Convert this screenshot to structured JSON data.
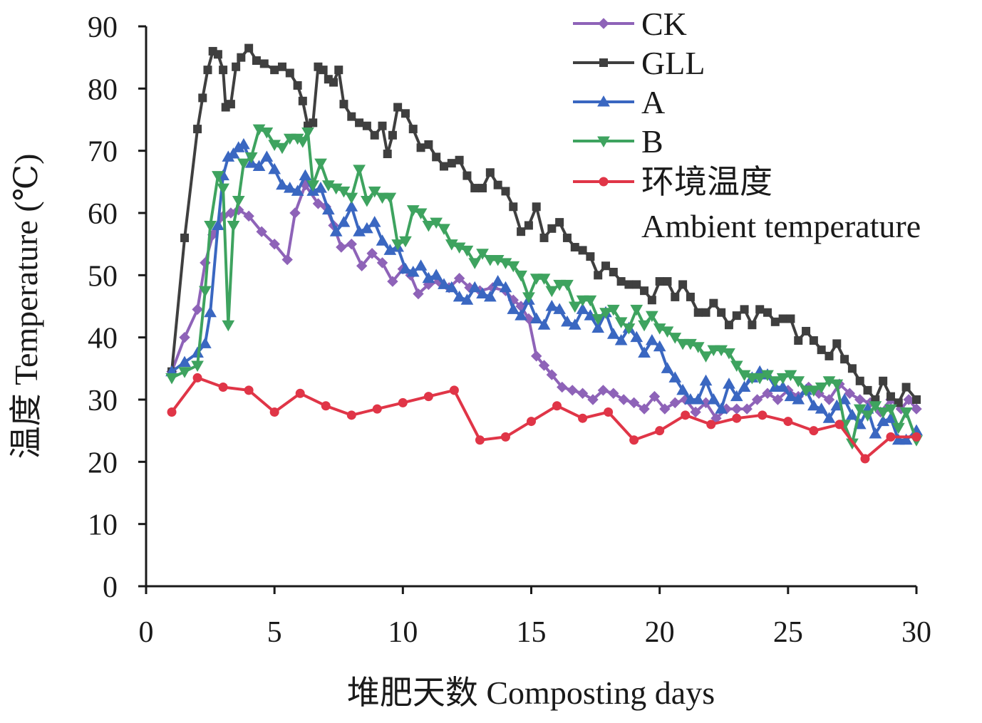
{
  "chart_data": {
    "type": "line",
    "title": "",
    "xlabel": "堆肥天数 Composting days",
    "ylabel": "温度 Temperature (℃)",
    "xlim": [
      0,
      30
    ],
    "ylim": [
      0,
      90
    ],
    "xticks": [
      0,
      5,
      10,
      15,
      20,
      25,
      30
    ],
    "yticks": [
      0,
      10,
      20,
      30,
      40,
      50,
      60,
      70,
      80,
      90
    ],
    "grid": false,
    "legend_position": "top-right",
    "series": [
      {
        "name": "CK",
        "color": "#8e63b8",
        "marker": "diamond",
        "x": [
          1,
          1.5,
          2,
          2.3,
          2.6,
          3,
          3.3,
          3.6,
          4,
          4.5,
          5,
          5.5,
          5.8,
          6.2,
          6.7,
          7,
          7.3,
          7.6,
          8,
          8.4,
          8.8,
          9.2,
          9.6,
          10,
          10.3,
          10.6,
          11,
          11.4,
          11.8,
          12.2,
          12.6,
          13,
          13.5,
          14,
          14.3,
          14.6,
          14.9,
          15.2,
          15.5,
          15.8,
          16.2,
          16.6,
          17,
          17.4,
          17.8,
          18.2,
          18.6,
          19,
          19.4,
          19.8,
          20.2,
          20.6,
          21,
          21.4,
          21.8,
          22.2,
          22.6,
          23,
          23.4,
          23.8,
          24.2,
          24.6,
          25,
          25.4,
          25.8,
          26.2,
          26.6,
          27,
          27.4,
          27.8,
          28.2,
          28.6,
          29,
          29.4,
          29.7,
          30
        ],
        "values": [
          34.5,
          40,
          44.5,
          52,
          56.5,
          59.5,
          60,
          60.5,
          59.5,
          57,
          55,
          52.5,
          60,
          64.5,
          61.5,
          61,
          58,
          54.5,
          55,
          51.5,
          53.5,
          52,
          49,
          51,
          50,
          47,
          48.5,
          49,
          48,
          49.5,
          48,
          47.5,
          48,
          47.5,
          46,
          45,
          43,
          37,
          35.5,
          34,
          32,
          31.5,
          31,
          30,
          31.5,
          31,
          30,
          29.5,
          28.5,
          30.5,
          28.5,
          29.5,
          30,
          28,
          29.5,
          27,
          28.5,
          28.5,
          28.5,
          30,
          31,
          30,
          31.5,
          30.5,
          32,
          31,
          30,
          32.5,
          31,
          30,
          29.5,
          28,
          30,
          28.5,
          30,
          28.5
        ]
      },
      {
        "name": "GLL",
        "color": "#3f3f3f",
        "marker": "square",
        "x": [
          1,
          1.5,
          2,
          2.2,
          2.4,
          2.6,
          2.8,
          3,
          3.1,
          3.3,
          3.5,
          3.7,
          4,
          4.3,
          4.6,
          5,
          5.3,
          5.6,
          5.9,
          6.1,
          6.3,
          6.5,
          6.7,
          6.9,
          7.1,
          7.3,
          7.5,
          7.7,
          8,
          8.3,
          8.6,
          8.9,
          9.2,
          9.4,
          9.6,
          9.8,
          10.1,
          10.4,
          10.7,
          11,
          11.3,
          11.6,
          11.9,
          12.2,
          12.5,
          12.8,
          13.1,
          13.4,
          13.7,
          14,
          14.3,
          14.6,
          14.9,
          15.2,
          15.5,
          15.8,
          16.1,
          16.4,
          16.7,
          17,
          17.3,
          17.6,
          17.9,
          18.2,
          18.5,
          18.8,
          19.1,
          19.4,
          19.7,
          20,
          20.3,
          20.6,
          20.9,
          21.2,
          21.5,
          21.8,
          22.1,
          22.4,
          22.7,
          23,
          23.3,
          23.6,
          23.9,
          24.2,
          24.5,
          24.8,
          25.1,
          25.4,
          25.7,
          26,
          26.3,
          26.6,
          26.9,
          27.2,
          27.5,
          27.8,
          28.1,
          28.4,
          28.7,
          29,
          29.3,
          29.6,
          30
        ],
        "values": [
          34.5,
          56,
          73.5,
          78.5,
          83,
          86,
          85.5,
          83,
          77,
          77.5,
          83.5,
          85,
          86.5,
          84.5,
          84,
          83,
          83.5,
          82.5,
          80.5,
          78,
          74,
          74.5,
          83.5,
          83,
          81.5,
          81,
          83,
          77.5,
          75.5,
          74.5,
          74,
          72.5,
          74,
          69.5,
          72.5,
          77,
          76,
          73.5,
          70.5,
          71,
          69,
          67.5,
          68,
          68.5,
          66,
          64,
          64,
          66.5,
          64.5,
          63.5,
          61,
          57,
          58,
          61,
          56,
          57.5,
          58.5,
          56,
          54.5,
          54,
          53,
          50,
          51.5,
          50.5,
          49,
          48.5,
          48.5,
          47.5,
          46,
          49,
          49,
          46.5,
          48.5,
          46.5,
          44,
          44,
          45.5,
          44,
          42,
          43.5,
          44.5,
          42,
          44.5,
          44,
          42.5,
          43,
          43,
          39.5,
          41,
          39.5,
          38,
          37,
          39,
          36.5,
          35,
          33,
          31.5,
          30,
          33,
          30.5,
          29.5,
          32,
          30
        ]
      },
      {
        "name": "A",
        "color": "#3a67c1",
        "marker": "triangle-up",
        "x": [
          1,
          1.5,
          2,
          2.3,
          2.5,
          2.8,
          3,
          3.2,
          3.4,
          3.6,
          3.8,
          4.1,
          4.4,
          4.7,
          5,
          5.3,
          5.6,
          5.9,
          6.2,
          6.5,
          6.8,
          7.1,
          7.4,
          7.7,
          8,
          8.3,
          8.6,
          8.9,
          9.2,
          9.5,
          9.8,
          10.1,
          10.4,
          10.7,
          11,
          11.3,
          11.6,
          11.9,
          12.2,
          12.5,
          12.8,
          13.1,
          13.4,
          13.7,
          14,
          14.3,
          14.6,
          14.9,
          15.2,
          15.5,
          15.8,
          16.1,
          16.4,
          16.7,
          17,
          17.3,
          17.6,
          17.9,
          18.2,
          18.5,
          18.8,
          19.1,
          19.4,
          19.7,
          20,
          20.3,
          20.6,
          20.9,
          21.2,
          21.5,
          21.8,
          22.1,
          22.4,
          22.7,
          23,
          23.3,
          23.6,
          23.9,
          24.2,
          24.5,
          24.8,
          25.1,
          25.4,
          25.7,
          26,
          26.3,
          26.6,
          26.9,
          27.2,
          27.5,
          27.8,
          28.1,
          28.4,
          28.7,
          29,
          29.3,
          29.6,
          30
        ],
        "values": [
          34.5,
          36,
          37.5,
          39,
          44,
          58,
          66,
          69,
          69.5,
          70.5,
          71,
          68,
          67.5,
          69,
          67,
          64.5,
          64,
          63.5,
          66,
          63.5,
          64,
          60.5,
          57,
          58.5,
          61,
          57,
          57.5,
          58.5,
          55.5,
          54,
          54.5,
          51,
          50.5,
          51.5,
          49.5,
          50,
          48.5,
          48,
          46.5,
          46,
          48,
          47,
          46.5,
          49,
          48,
          44.5,
          43.5,
          46,
          43,
          42,
          45,
          44.5,
          42.5,
          42,
          44.5,
          43.5,
          41.5,
          44,
          40.5,
          39.5,
          41.5,
          40,
          37.5,
          39.5,
          38.5,
          35,
          33.5,
          31.5,
          30,
          30,
          33,
          30,
          28.5,
          32.5,
          30.5,
          32,
          33.5,
          34.5,
          34,
          32,
          32,
          30.5,
          30,
          31.5,
          29,
          28.5,
          27,
          29,
          30,
          27.5,
          26,
          28.5,
          24.5,
          26.5,
          27,
          23.5,
          23.5,
          25
        ]
      },
      {
        "name": "B",
        "color": "#3ea35f",
        "marker": "triangle-down",
        "x": [
          1,
          1.5,
          2,
          2.3,
          2.5,
          2.8,
          3,
          3.2,
          3.4,
          3.6,
          3.8,
          4.1,
          4.4,
          4.7,
          5,
          5.3,
          5.6,
          5.9,
          6.1,
          6.3,
          6.5,
          6.8,
          7.1,
          7.4,
          7.7,
          8,
          8.3,
          8.6,
          8.9,
          9.2,
          9.5,
          9.8,
          10.1,
          10.4,
          10.7,
          11,
          11.3,
          11.6,
          11.9,
          12.2,
          12.5,
          12.8,
          13.1,
          13.4,
          13.7,
          14,
          14.3,
          14.6,
          14.9,
          15.2,
          15.5,
          15.8,
          16.1,
          16.4,
          16.7,
          17,
          17.3,
          17.6,
          17.9,
          18.2,
          18.5,
          18.8,
          19.1,
          19.4,
          19.7,
          20,
          20.3,
          20.6,
          20.9,
          21.2,
          21.5,
          21.8,
          22.1,
          22.4,
          22.7,
          23,
          23.3,
          23.6,
          23.9,
          24.2,
          24.5,
          24.8,
          25.1,
          25.4,
          25.7,
          26,
          26.3,
          26.6,
          26.9,
          27.2,
          27.5,
          27.8,
          28.1,
          28.4,
          28.7,
          29,
          29.3,
          29.6,
          30
        ],
        "values": [
          33.5,
          34.5,
          35.5,
          47.5,
          58,
          66,
          64,
          42,
          58,
          62,
          68,
          69,
          73.5,
          73,
          71,
          70.5,
          72,
          72,
          71.5,
          73,
          64.5,
          68,
          64.5,
          64,
          63.5,
          62.5,
          67,
          62,
          63.5,
          62.5,
          62.5,
          55,
          55.5,
          60.5,
          60,
          58,
          58.5,
          57.5,
          55,
          54.5,
          54,
          52,
          53.5,
          52.5,
          52.5,
          52,
          51.5,
          50,
          46.5,
          49.5,
          49.5,
          47.5,
          48.5,
          48.5,
          45,
          46,
          46,
          43,
          44,
          44.5,
          42.5,
          41.5,
          44.5,
          42,
          43.5,
          41.5,
          41,
          40,
          39,
          39,
          38.5,
          37,
          38,
          38,
          37.5,
          35.5,
          34,
          33.5,
          33.5,
          34,
          33,
          33.5,
          34,
          33,
          31.5,
          31.5,
          32,
          33,
          32.5,
          26,
          23,
          28.5,
          27.5,
          29,
          28,
          28.5,
          25.5,
          28,
          23.5
        ]
      },
      {
        "name": "环境温度 Ambient temperature",
        "color": "#e03547",
        "marker": "circle",
        "x": [
          1,
          2,
          3,
          4,
          5,
          6,
          7,
          8,
          9,
          10,
          11,
          12,
          13,
          14,
          15,
          16,
          17,
          18,
          19,
          20,
          21,
          22,
          23,
          24,
          25,
          26,
          27,
          28,
          29,
          30
        ],
        "values": [
          28,
          33.5,
          32,
          31.5,
          28,
          31,
          29,
          27.5,
          28.5,
          29.5,
          30.5,
          31.5,
          23.5,
          24,
          26.5,
          29,
          27,
          28,
          23.5,
          25,
          27.5,
          26,
          27,
          27.5,
          26.5,
          25,
          26,
          20.5,
          24,
          24
        ]
      }
    ],
    "legend": [
      {
        "label": "CK",
        "series": 0
      },
      {
        "label": "GLL",
        "series": 1
      },
      {
        "label": "A",
        "series": 2
      },
      {
        "label": "B",
        "series": 3
      },
      {
        "label": "环境温度",
        "label2": "Ambient temperature",
        "series": 4
      }
    ]
  }
}
